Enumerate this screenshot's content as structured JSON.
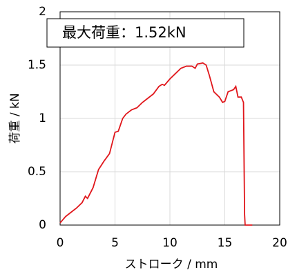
{
  "chart_data": {
    "type": "line",
    "annotation": "最大荷重：1.52kN",
    "x_label": "ストローク / mm",
    "y_label": "荷重 / kN",
    "series": [
      {
        "color": "#e0161b",
        "x": [
          0,
          0.5,
          1,
          1.5,
          2,
          2.3,
          2.5,
          3,
          3.5,
          4,
          4.5,
          5,
          5.3,
          5.7,
          6,
          6.5,
          7,
          7.5,
          8,
          8.5,
          9,
          9.3,
          9.5,
          10,
          10.5,
          11,
          11.5,
          12,
          12.3,
          12.5,
          13,
          13.3,
          13.6,
          14,
          14.5,
          14.8,
          15,
          15.3,
          15.8,
          16,
          16.2,
          16.5,
          16.7,
          16.8,
          16.85,
          17.5
        ],
        "values": [
          0.02,
          0.08,
          0.12,
          0.16,
          0.21,
          0.27,
          0.25,
          0.35,
          0.52,
          0.6,
          0.67,
          0.87,
          0.88,
          1.0,
          1.04,
          1.08,
          1.1,
          1.15,
          1.19,
          1.23,
          1.3,
          1.32,
          1.31,
          1.37,
          1.42,
          1.47,
          1.49,
          1.49,
          1.47,
          1.51,
          1.52,
          1.5,
          1.4,
          1.25,
          1.2,
          1.15,
          1.16,
          1.25,
          1.27,
          1.3,
          1.2,
          1.2,
          1.15,
          0.1,
          0,
          0
        ]
      }
    ],
    "xlim": [
      0,
      20
    ],
    "xticks": [
      0,
      5,
      10,
      15,
      20
    ],
    "ylim": [
      0,
      2
    ],
    "yticks": [
      0,
      0.5,
      1,
      1.5,
      2
    ],
    "grid": true
  }
}
